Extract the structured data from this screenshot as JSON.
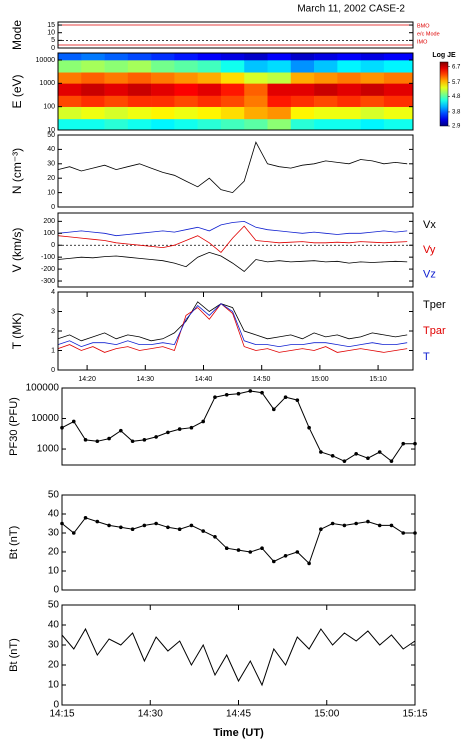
{
  "chart_data": [
    {
      "type": "mode",
      "title": "March 11, 2002 CASE-2",
      "ylabel": "Mode",
      "xlim": [
        855,
        916
      ],
      "ylim": [
        0,
        17
      ],
      "yticks": [
        0,
        5,
        10,
        15
      ],
      "reference_line": 5,
      "annotations": [
        "BMO",
        "e/c Mode",
        "IMO"
      ]
    },
    {
      "type": "heatmap",
      "ylabel": "E (eV)",
      "xlim": [
        855,
        916
      ],
      "ylim": [
        10,
        20000
      ],
      "ylog": true,
      "yticks": [
        10,
        100,
        1000,
        10000
      ],
      "x_edges": [
        855,
        859,
        863,
        867,
        871,
        875,
        879,
        883,
        887,
        891,
        895,
        899,
        903,
        907,
        911,
        916
      ],
      "y_edges": [
        10,
        30,
        100,
        300,
        1000,
        3000,
        10000,
        20000
      ],
      "z": [
        [
          4.5,
          4.5,
          4.6,
          4.5,
          4.4,
          4.5,
          4.6,
          4.7,
          4.8,
          5.0,
          4.6,
          4.5,
          4.5,
          4.4,
          4.5
        ],
        [
          5.3,
          5.4,
          5.3,
          5.4,
          5.5,
          5.4,
          5.5,
          5.6,
          5.8,
          5.9,
          5.5,
          5.4,
          5.4,
          5.3,
          5.4
        ],
        [
          6.2,
          6.3,
          6.2,
          6.3,
          6.3,
          6.2,
          6.3,
          6.2,
          6.0,
          6.4,
          6.3,
          6.2,
          6.3,
          6.2,
          6.3
        ],
        [
          6.6,
          6.7,
          6.6,
          6.7,
          6.6,
          6.5,
          6.6,
          6.4,
          6.1,
          6.6,
          6.6,
          6.7,
          6.6,
          6.7,
          6.6
        ],
        [
          6.0,
          6.1,
          6.0,
          6.1,
          6.0,
          5.9,
          5.8,
          5.6,
          5.3,
          5.2,
          5.8,
          5.9,
          6.0,
          5.9,
          6.0
        ],
        [
          5.0,
          5.1,
          5.0,
          5.1,
          4.9,
          4.8,
          4.7,
          4.5,
          4.2,
          4.3,
          4.0,
          4.2,
          4.4,
          4.3,
          4.4
        ],
        [
          3.8,
          3.9,
          3.8,
          3.7,
          3.6,
          3.5,
          3.4,
          3.3,
          3.2,
          3.4,
          3.2,
          3.3,
          3.4,
          3.3,
          3.4
        ]
      ],
      "colorbar_label": "Log JE",
      "clim": [
        2.9,
        7.0
      ],
      "colorbar_ticks": [
        2.9,
        3.8,
        4.8,
        5.7,
        6.7
      ]
    },
    {
      "type": "line",
      "ylabel": "N (cm⁻³)",
      "xlim": [
        855,
        916
      ],
      "ylim": [
        0,
        50
      ],
      "yticks": [
        0,
        10,
        20,
        30,
        40,
        50
      ],
      "x": [
        855,
        857,
        859,
        861,
        863,
        865,
        867,
        869,
        871,
        873,
        875,
        877,
        879,
        881,
        883,
        885,
        887,
        889,
        891,
        893,
        895,
        897,
        899,
        901,
        903,
        905,
        907,
        909,
        911,
        913,
        915
      ],
      "series": [
        {
          "color": "#000000",
          "values": [
            26,
            28,
            25,
            27,
            29,
            26,
            28,
            30,
            27,
            24,
            22,
            18,
            14,
            20,
            12,
            10,
            18,
            45,
            30,
            28,
            27,
            29,
            30,
            32,
            31,
            30,
            33,
            32,
            30,
            31,
            30
          ]
        }
      ]
    },
    {
      "type": "line",
      "ylabel": "V (km/s)",
      "xlim": [
        855,
        916
      ],
      "ylim": [
        -350,
        270
      ],
      "yticks": [
        -300,
        -200,
        -100,
        0,
        100,
        200
      ],
      "reference_line": 0,
      "x": [
        855,
        857,
        859,
        861,
        863,
        865,
        867,
        869,
        871,
        873,
        875,
        877,
        879,
        881,
        883,
        885,
        887,
        889,
        891,
        893,
        895,
        897,
        899,
        901,
        903,
        905,
        907,
        909,
        911,
        913,
        915
      ],
      "series": [
        {
          "name": "Vx",
          "color": "#000000",
          "values": [
            -120,
            -110,
            -100,
            -105,
            -95,
            -90,
            -100,
            -110,
            -120,
            -130,
            -150,
            -180,
            -100,
            -60,
            -90,
            -150,
            -220,
            -120,
            -140,
            -130,
            -140,
            -135,
            -130,
            -140,
            -135,
            -150,
            -140,
            -145,
            -140,
            -135,
            -140
          ]
        },
        {
          "name": "Vy",
          "color": "#e00000",
          "values": [
            80,
            70,
            60,
            50,
            40,
            20,
            10,
            0,
            -10,
            -20,
            0,
            40,
            80,
            20,
            -60,
            60,
            160,
            40,
            30,
            20,
            25,
            30,
            20,
            20,
            25,
            20,
            30,
            25,
            20,
            25,
            30
          ]
        },
        {
          "name": "Vz",
          "color": "#1020d0",
          "values": [
            100,
            110,
            120,
            110,
            100,
            80,
            90,
            100,
            110,
            120,
            110,
            130,
            150,
            120,
            170,
            190,
            200,
            150,
            130,
            120,
            110,
            100,
            110,
            100,
            90,
            100,
            100,
            110,
            120,
            110,
            120
          ]
        }
      ]
    },
    {
      "type": "line",
      "ylabel": "T (MK)",
      "xlim": [
        855,
        916
      ],
      "ylim": [
        0,
        4
      ],
      "yticks": [
        0,
        1,
        2,
        3,
        4
      ],
      "xticks": [
        {
          "value": 860,
          "label": "14:20"
        },
        {
          "value": 870,
          "label": "14:30"
        },
        {
          "value": 880,
          "label": "14:40"
        },
        {
          "value": 890,
          "label": "14:50"
        },
        {
          "value": 900,
          "label": "15:00"
        },
        {
          "value": 910,
          "label": "15:10"
        }
      ],
      "x": [
        855,
        857,
        859,
        861,
        863,
        865,
        867,
        869,
        871,
        873,
        875,
        877,
        879,
        881,
        883,
        885,
        887,
        889,
        891,
        893,
        895,
        897,
        899,
        901,
        903,
        905,
        907,
        909,
        911,
        913,
        915
      ],
      "series": [
        {
          "name": "Tper",
          "color": "#000000",
          "values": [
            1.6,
            1.8,
            1.5,
            1.7,
            1.9,
            1.6,
            1.8,
            1.7,
            1.5,
            1.6,
            1.9,
            2.5,
            3.5,
            3.0,
            3.4,
            3.2,
            2.0,
            1.8,
            1.6,
            1.7,
            1.8,
            1.6,
            1.9,
            1.7,
            1.8,
            1.6,
            1.7,
            1.9,
            1.8,
            1.7,
            1.8
          ]
        },
        {
          "name": "Tpar",
          "color": "#e00000",
          "values": [
            1.1,
            1.3,
            1.0,
            1.2,
            0.9,
            1.1,
            1.2,
            1.0,
            1.1,
            1.2,
            1.0,
            2.8,
            3.2,
            2.6,
            3.4,
            2.9,
            1.2,
            1.0,
            1.1,
            0.9,
            1.0,
            1.1,
            1.0,
            1.2,
            0.9,
            1.0,
            1.1,
            1.0,
            0.9,
            1.0,
            1.1
          ]
        },
        {
          "name": "T",
          "color": "#1020d0",
          "values": [
            1.3,
            1.5,
            1.2,
            1.4,
            1.4,
            1.3,
            1.5,
            1.3,
            1.3,
            1.4,
            1.3,
            2.6,
            3.3,
            2.8,
            3.4,
            3.0,
            1.5,
            1.3,
            1.3,
            1.2,
            1.3,
            1.3,
            1.4,
            1.4,
            1.3,
            1.2,
            1.3,
            1.4,
            1.3,
            1.3,
            1.4
          ]
        }
      ]
    },
    {
      "type": "line",
      "markers": true,
      "ylabel": "PF30 (PFU)",
      "xlim": [
        855,
        915
      ],
      "ylim": [
        300,
        100000
      ],
      "ylog": true,
      "yticks": [
        1000,
        10000,
        100000
      ],
      "x": [
        855,
        857,
        859,
        861,
        863,
        865,
        867,
        869,
        871,
        873,
        875,
        877,
        879,
        881,
        883,
        885,
        887,
        889,
        891,
        893,
        895,
        897,
        899,
        901,
        903,
        905,
        907,
        909,
        911,
        913,
        915
      ],
      "series": [
        {
          "color": "#000000",
          "values": [
            5000,
            8000,
            2000,
            1800,
            2200,
            4000,
            1800,
            2000,
            2500,
            3500,
            4500,
            5000,
            8000,
            50000,
            60000,
            65000,
            80000,
            70000,
            20000,
            50000,
            40000,
            5000,
            800,
            600,
            400,
            700,
            500,
            800,
            400,
            1500,
            1500
          ]
        }
      ]
    },
    {
      "type": "line",
      "markers": true,
      "ylabel": "Bt (nT)",
      "xlim": [
        855,
        915
      ],
      "ylim": [
        0,
        50
      ],
      "yticks": [
        0,
        10,
        20,
        30,
        40,
        50
      ],
      "x": [
        855,
        857,
        859,
        861,
        863,
        865,
        867,
        869,
        871,
        873,
        875,
        877,
        879,
        881,
        883,
        885,
        887,
        889,
        891,
        893,
        895,
        897,
        899,
        901,
        903,
        905,
        907,
        909,
        911,
        913,
        915
      ],
      "series": [
        {
          "color": "#000000",
          "values": [
            35,
            30,
            38,
            36,
            34,
            33,
            32,
            34,
            35,
            33,
            32,
            34,
            31,
            28,
            22,
            21,
            20,
            22,
            15,
            18,
            20,
            14,
            32,
            35,
            34,
            35,
            36,
            34,
            34,
            30,
            30
          ]
        }
      ]
    },
    {
      "type": "line",
      "ylabel": "Bt (nT)",
      "xlabel": "Time (UT)",
      "xlim": [
        855,
        915
      ],
      "ylim": [
        0,
        50
      ],
      "yticks": [
        0,
        10,
        20,
        30,
        40,
        50
      ],
      "xticks": [
        {
          "value": 855,
          "label": "14:15"
        },
        {
          "value": 870,
          "label": "14:30"
        },
        {
          "value": 885,
          "label": "14:45"
        },
        {
          "value": 900,
          "label": "15:00"
        },
        {
          "value": 915,
          "label": "15:15"
        }
      ],
      "x": [
        855,
        857,
        859,
        861,
        863,
        865,
        867,
        869,
        871,
        873,
        875,
        877,
        879,
        881,
        883,
        885,
        887,
        889,
        891,
        893,
        895,
        897,
        899,
        901,
        903,
        905,
        907,
        909,
        911,
        913,
        915
      ],
      "series": [
        {
          "color": "#000000",
          "values": [
            35,
            28,
            38,
            25,
            33,
            30,
            36,
            22,
            34,
            27,
            32,
            20,
            30,
            15,
            25,
            12,
            22,
            10,
            28,
            20,
            34,
            28,
            38,
            30,
            36,
            32,
            37,
            30,
            35,
            28,
            32
          ]
        }
      ]
    }
  ]
}
